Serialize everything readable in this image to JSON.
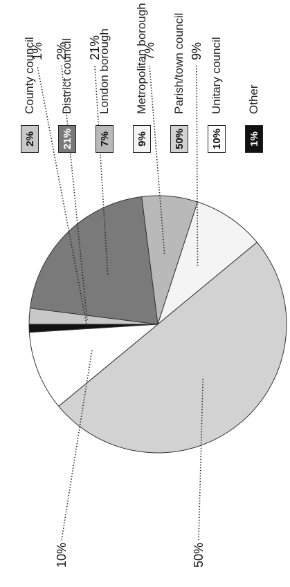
{
  "chart_data": {
    "type": "pie",
    "categories": [
      "County council",
      "District council",
      "London borough",
      "Metropolitan borough",
      "Parish/town council",
      "Unitary council",
      "Other"
    ],
    "values": [
      2,
      21,
      7,
      9,
      50,
      10,
      1
    ],
    "slice_labels": [
      "2%",
      "21%",
      "7%",
      "9%",
      "50%",
      "10%",
      "1%"
    ],
    "legend_labels": [
      "2%",
      "21%",
      "7%",
      "9%",
      "50%",
      "10%",
      "1%"
    ],
    "title": "",
    "legend_position": "right",
    "colors": [
      "#c8c8c8",
      "#7a7a7a",
      "#b9b9b9",
      "#f4f4f4",
      "#d2d2d2",
      "#ffffff",
      "#111111"
    ],
    "legend_text_colors": [
      "#111111",
      "#ffffff",
      "#111111",
      "#111111",
      "#111111",
      "#111111",
      "#ffffff"
    ]
  }
}
